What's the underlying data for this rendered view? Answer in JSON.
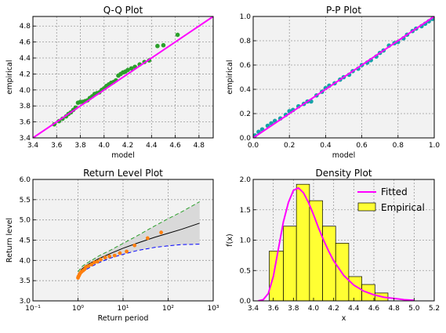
{
  "chart_data": [
    {
      "type": "scatter",
      "title": "Q-Q Plot",
      "xlabel": "model",
      "ylabel": "empirical",
      "xlim": [
        3.4,
        4.92
      ],
      "ylim": [
        3.4,
        4.92
      ],
      "grid": true,
      "xticks": [
        "3.4",
        "3.6",
        "3.8",
        "4.0",
        "4.2",
        "4.4",
        "4.6",
        "4.8"
      ],
      "yticks": [
        "3.4",
        "3.6",
        "3.8",
        "4.0",
        "4.2",
        "4.4",
        "4.6",
        "4.8"
      ],
      "reference_line": {
        "color": "#ff00ff",
        "x": [
          3.4,
          4.92
        ],
        "y": [
          3.4,
          4.92
        ]
      },
      "series": [
        {
          "color": "#2ca02c",
          "x": [
            3.58,
            3.62,
            3.65,
            3.68,
            3.7,
            3.72,
            3.74,
            3.76,
            3.78,
            3.8,
            3.82,
            3.84,
            3.86,
            3.88,
            3.9,
            3.92,
            3.94,
            3.96,
            3.98,
            4.0,
            4.02,
            4.04,
            4.06,
            4.08,
            4.1,
            4.12,
            4.14,
            4.16,
            4.18,
            4.2,
            4.23,
            4.26,
            4.3,
            4.34,
            4.38,
            4.45,
            4.5,
            4.62
          ],
          "y": [
            3.57,
            3.61,
            3.64,
            3.67,
            3.7,
            3.72,
            3.75,
            3.78,
            3.84,
            3.85,
            3.85,
            3.86,
            3.87,
            3.9,
            3.92,
            3.95,
            3.96,
            3.97,
            4.0,
            4.02,
            4.05,
            4.07,
            4.09,
            4.1,
            4.12,
            4.18,
            4.2,
            4.22,
            4.23,
            4.25,
            4.27,
            4.29,
            4.32,
            4.35,
            4.37,
            4.55,
            4.56,
            4.69
          ]
        }
      ]
    },
    {
      "type": "scatter",
      "title": "P-P Plot",
      "xlabel": "model",
      "ylabel": "empirical",
      "xlim": [
        0,
        1
      ],
      "ylim": [
        0,
        1
      ],
      "grid": true,
      "xticks": [
        "0.0",
        "0.2",
        "0.4",
        "0.6",
        "0.8",
        "1.0"
      ],
      "yticks": [
        "0.0",
        "0.2",
        "0.4",
        "0.6",
        "0.8",
        "1.0"
      ],
      "reference_line": {
        "color": "#ff00ff",
        "x": [
          0,
          1
        ],
        "y": [
          0,
          1
        ]
      },
      "series": [
        {
          "color": "#17a2a8",
          "x": [
            0.01,
            0.03,
            0.05,
            0.08,
            0.1,
            0.12,
            0.15,
            0.18,
            0.2,
            0.22,
            0.25,
            0.28,
            0.3,
            0.32,
            0.35,
            0.38,
            0.4,
            0.42,
            0.45,
            0.48,
            0.5,
            0.53,
            0.55,
            0.58,
            0.6,
            0.63,
            0.65,
            0.68,
            0.7,
            0.72,
            0.75,
            0.78,
            0.8,
            0.83,
            0.85,
            0.88,
            0.9,
            0.93,
            0.95,
            0.97,
            0.99
          ],
          "y": [
            0.02,
            0.05,
            0.07,
            0.1,
            0.12,
            0.14,
            0.16,
            0.19,
            0.22,
            0.23,
            0.26,
            0.28,
            0.3,
            0.3,
            0.35,
            0.38,
            0.41,
            0.43,
            0.45,
            0.48,
            0.5,
            0.52,
            0.55,
            0.57,
            0.6,
            0.62,
            0.64,
            0.67,
            0.7,
            0.72,
            0.76,
            0.78,
            0.79,
            0.82,
            0.85,
            0.88,
            0.9,
            0.92,
            0.94,
            0.96,
            0.98
          ]
        }
      ]
    },
    {
      "type": "line",
      "title": "Return Level Plot",
      "xlabel": "Return period",
      "ylabel": "Return level",
      "xscale": "log",
      "xlim": [
        0.1,
        1000
      ],
      "ylim": [
        3.0,
        6.0
      ],
      "grid": true,
      "xticks": [
        "10⁻¹",
        "10⁰",
        "10¹",
        "10²",
        "10³"
      ],
      "yticks": [
        "3.0",
        "3.5",
        "4.0",
        "4.5",
        "5.0",
        "5.5",
        "6.0"
      ],
      "series": [
        {
          "style": "solid",
          "color": "#000000",
          "x": [
            1.0,
            1.2,
            1.5,
            2,
            3,
            5,
            10,
            20,
            50,
            100,
            200,
            500
          ],
          "y": [
            3.65,
            3.78,
            3.87,
            3.95,
            4.05,
            4.16,
            4.3,
            4.42,
            4.57,
            4.67,
            4.77,
            4.92
          ]
        },
        {
          "style": "dashed",
          "color": "#2ca02c",
          "x": [
            1.0,
            1.2,
            1.5,
            2,
            3,
            5,
            10,
            20,
            50,
            100,
            200,
            500
          ],
          "y": [
            3.72,
            3.84,
            3.92,
            4.0,
            4.12,
            4.24,
            4.42,
            4.6,
            4.85,
            5.03,
            5.2,
            5.45
          ]
        },
        {
          "style": "dashed",
          "color": "#0000ff",
          "x": [
            1.0,
            1.2,
            1.5,
            2,
            3,
            5,
            10,
            20,
            50,
            100,
            200,
            500
          ],
          "y": [
            3.56,
            3.68,
            3.77,
            3.85,
            3.95,
            4.05,
            4.15,
            4.24,
            4.32,
            4.36,
            4.39,
            4.4
          ]
        }
      ],
      "points": {
        "color": "#ff7f0e",
        "x": [
          1.0,
          1.02,
          1.05,
          1.08,
          1.1,
          1.15,
          1.2,
          1.3,
          1.4,
          1.5,
          1.7,
          2.0,
          2.3,
          2.7,
          3.2,
          4.0,
          5.0,
          6.5,
          8.5,
          12,
          18,
          35,
          70
        ],
        "y": [
          3.57,
          3.6,
          3.62,
          3.65,
          3.67,
          3.7,
          3.72,
          3.75,
          3.78,
          3.84,
          3.86,
          3.9,
          3.95,
          3.97,
          4.02,
          4.07,
          4.1,
          4.12,
          4.18,
          4.22,
          4.37,
          4.55,
          4.69
        ]
      }
    },
    {
      "type": "bar",
      "title": "Density Plot",
      "xlabel": "x",
      "ylabel": "f(x)",
      "xlim": [
        3.4,
        5.2
      ],
      "ylim": [
        0,
        2.0
      ],
      "grid": true,
      "legend": "top-right",
      "xticks": [
        "3.4",
        "3.6",
        "3.8",
        "4.0",
        "4.2",
        "4.4",
        "4.6",
        "4.8",
        "5.0",
        "5.2"
      ],
      "yticks": [
        "0.0",
        "0.5",
        "1.0",
        "1.5",
        "2.0"
      ],
      "bins": [
        {
          "x0": 3.56,
          "x1": 3.7,
          "value": 0.82
        },
        {
          "x0": 3.7,
          "x1": 3.83,
          "value": 1.23
        },
        {
          "x0": 3.83,
          "x1": 3.96,
          "value": 1.92
        },
        {
          "x0": 3.96,
          "x1": 4.09,
          "value": 1.65
        },
        {
          "x0": 4.09,
          "x1": 4.22,
          "value": 1.23
        },
        {
          "x0": 4.22,
          "x1": 4.35,
          "value": 0.95
        },
        {
          "x0": 4.35,
          "x1": 4.48,
          "value": 0.4
        },
        {
          "x0": 4.48,
          "x1": 4.61,
          "value": 0.27
        },
        {
          "x0": 4.61,
          "x1": 4.74,
          "value": 0.13
        }
      ],
      "bar_color": "#ffff33",
      "curve_color": "#ff00ff",
      "curve": {
        "x": [
          3.45,
          3.5,
          3.55,
          3.6,
          3.65,
          3.7,
          3.75,
          3.8,
          3.85,
          3.9,
          3.95,
          4.0,
          4.05,
          4.1,
          4.15,
          4.2,
          4.3,
          4.4,
          4.5,
          4.6,
          4.7,
          4.8,
          4.9,
          5.0
        ],
        "y": [
          0.0,
          0.02,
          0.12,
          0.4,
          0.85,
          1.3,
          1.62,
          1.82,
          1.86,
          1.78,
          1.62,
          1.42,
          1.2,
          1.0,
          0.82,
          0.66,
          0.42,
          0.26,
          0.16,
          0.1,
          0.06,
          0.04,
          0.02,
          0.01
        ]
      },
      "legend_entries": {
        "fitted": "Fitted",
        "empirical": "Empirical"
      }
    }
  ]
}
